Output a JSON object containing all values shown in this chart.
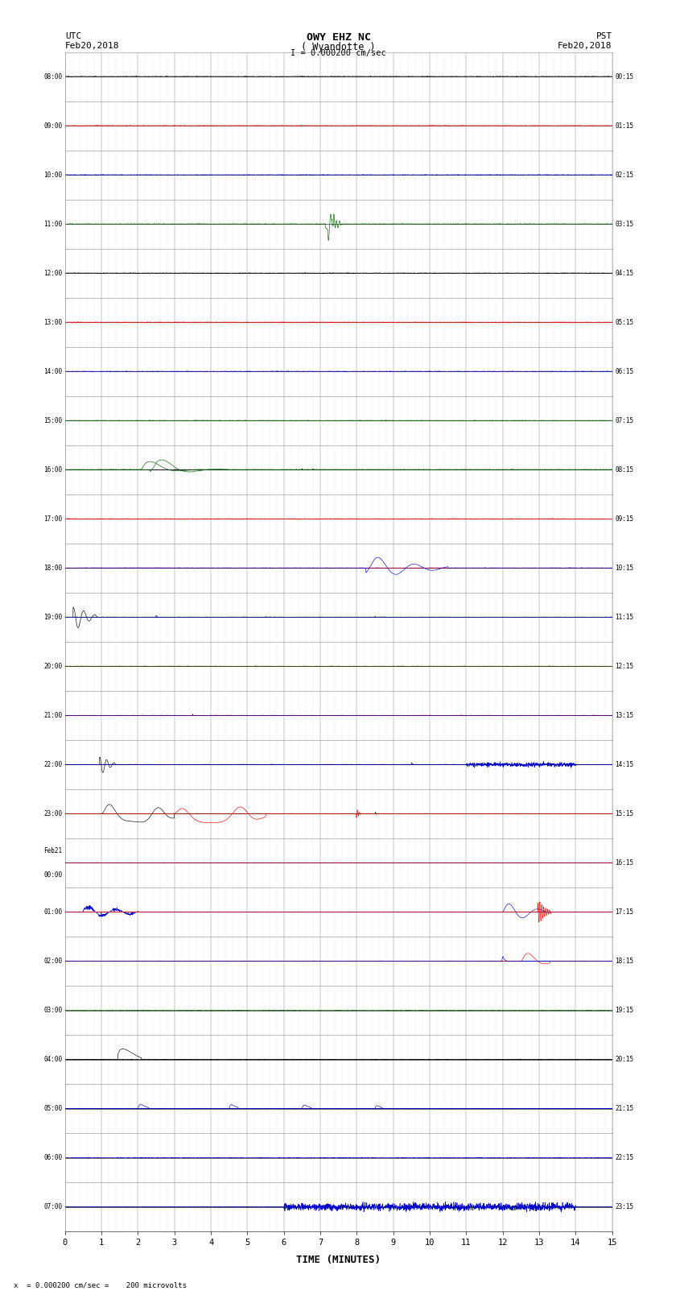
{
  "title_line1": "OWY EHZ NC",
  "title_line2": "( Wyandotte )",
  "title_scale": "I = 0.000200 cm/sec",
  "left_label_top": "UTC",
  "left_label_date": "Feb20,2018",
  "right_label_top": "PST",
  "right_label_date": "Feb20,2018",
  "bottom_label": "TIME (MINUTES)",
  "bottom_note": "x  = 0.000200 cm/sec =    200 microvolts",
  "xlim": [
    0,
    15
  ],
  "xticks": [
    0,
    1,
    2,
    3,
    4,
    5,
    6,
    7,
    8,
    9,
    10,
    11,
    12,
    13,
    14,
    15
  ],
  "num_rows": 24,
  "row_labels_left": [
    "08:00",
    "09:00",
    "10:00",
    "11:00",
    "12:00",
    "13:00",
    "14:00",
    "15:00",
    "16:00",
    "17:00",
    "18:00",
    "19:00",
    "20:00",
    "21:00",
    "22:00",
    "23:00",
    "Feb21\n00:00",
    "01:00",
    "02:00",
    "03:00",
    "04:00",
    "05:00",
    "06:00",
    "07:00"
  ],
  "row_labels_right": [
    "00:15",
    "01:15",
    "02:15",
    "03:15",
    "04:15",
    "05:15",
    "06:15",
    "07:15",
    "08:15",
    "09:15",
    "10:15",
    "11:15",
    "12:15",
    "13:15",
    "14:15",
    "15:15",
    "16:15",
    "17:15",
    "18:15",
    "19:15",
    "20:15",
    "21:15",
    "22:15",
    "23:15"
  ],
  "row_colors": [
    "#000000",
    "#ff0000",
    "#0000cc",
    "#006600",
    "#000000",
    "#ff0000",
    "#0000cc",
    "#006600",
    "#000000",
    "#ff0000",
    "#0000cc",
    "#006600",
    "#000000",
    "#ff0000",
    "#0000cc",
    "#006600",
    "#000000",
    "#ff0000",
    "#0000cc",
    "#006600",
    "#000000",
    "#ff0000",
    "#0000cc",
    "#006600"
  ],
  "bg_color": "#ffffff",
  "grid_major_color": "#000000",
  "grid_minor_color": "#aaaaaa",
  "fig_width": 8.5,
  "fig_height": 16.13
}
